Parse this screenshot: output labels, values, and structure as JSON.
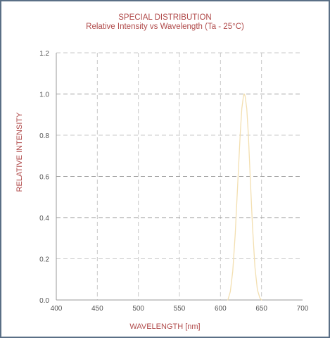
{
  "chart_data": {
    "type": "line",
    "title": "SPECIAL DISTRIBUTION",
    "subtitle": "Relative Intensity vs Wavelength (Ta - 25°C)",
    "xlabel": "WAVELENGTH [nm]",
    "ylabel": "RELATIVE INTENSITY",
    "xlim": [
      400,
      700
    ],
    "ylim": [
      0,
      1.2
    ],
    "xticks": [
      "400",
      "450",
      "500",
      "550",
      "600",
      "650",
      "700"
    ],
    "yticks": [
      "0.0",
      "0.2",
      "0.4",
      "0.6",
      "0.8",
      "1.0",
      "1.2"
    ],
    "grid": true,
    "series": [
      {
        "color": "#f3dfb0",
        "x": [
          609,
          612,
          615,
          618,
          621,
          624,
          626,
          628,
          629,
          630,
          632,
          634,
          636,
          639,
          642,
          645,
          648,
          650
        ],
        "y": [
          0.0,
          0.04,
          0.14,
          0.32,
          0.56,
          0.8,
          0.93,
          0.99,
          1.0,
          0.99,
          0.93,
          0.8,
          0.62,
          0.36,
          0.16,
          0.05,
          0.01,
          0.0
        ]
      }
    ]
  }
}
